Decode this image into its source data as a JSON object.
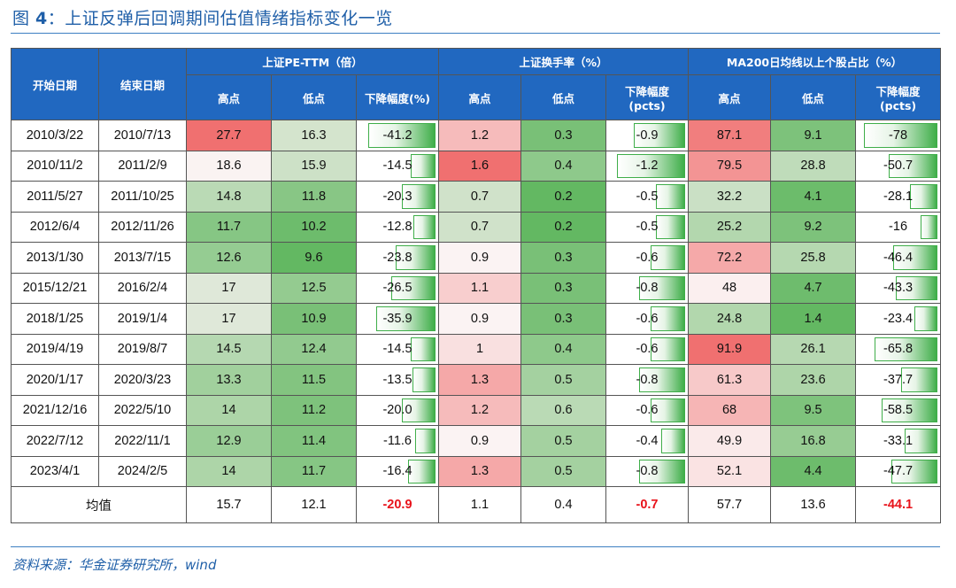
{
  "title": {
    "prefix": "图 ",
    "num": "4",
    "text": "：上证反弹后回调期间估值情绪指标变化一览"
  },
  "header": {
    "start_date": "开始日期",
    "end_date": "结束日期",
    "groups": [
      "上证PE-TTM（倍）",
      "上证换手率（%）",
      "MA200日均线以上个股占比（%）"
    ],
    "sub": [
      "高点",
      "低点",
      "下降幅度(%)",
      "高点",
      "低点",
      "下降幅度\n(pcts)",
      "高点",
      "低点",
      "下降幅度\n(pcts)"
    ]
  },
  "colors": {
    "header_bg": "#2168c0",
    "red_strong": "#f07070",
    "green_strong": "#5cb85c",
    "avg_red": "#e8131b",
    "accent": "#1f5fa8"
  },
  "rows": [
    {
      "start": "2010/3/22",
      "end": "2010/7/13",
      "pe_high": "27.7",
      "pe_low": "16.3",
      "pe_drop": "-41.2",
      "to_high": "1.2",
      "to_low": "0.3",
      "to_drop": "-0.9",
      "ma_high": "87.1",
      "ma_low": "9.1",
      "ma_drop": "-78"
    },
    {
      "start": "2010/11/2",
      "end": "2011/2/9",
      "pe_high": "18.6",
      "pe_low": "15.9",
      "pe_drop": "-14.5",
      "to_high": "1.6",
      "to_low": "0.4",
      "to_drop": "-1.2",
      "ma_high": "79.5",
      "ma_low": "28.8",
      "ma_drop": "-50.7"
    },
    {
      "start": "2011/5/27",
      "end": "2011/10/25",
      "pe_high": "14.8",
      "pe_low": "11.8",
      "pe_drop": "-20.3",
      "to_high": "0.7",
      "to_low": "0.2",
      "to_drop": "-0.5",
      "ma_high": "32.2",
      "ma_low": "4.1",
      "ma_drop": "-28.1"
    },
    {
      "start": "2012/6/4",
      "end": "2012/11/26",
      "pe_high": "11.7",
      "pe_low": "10.2",
      "pe_drop": "-12.8",
      "to_high": "0.7",
      "to_low": "0.2",
      "to_drop": "-0.5",
      "ma_high": "25.2",
      "ma_low": "9.2",
      "ma_drop": "-16"
    },
    {
      "start": "2013/1/30",
      "end": "2013/7/15",
      "pe_high": "12.6",
      "pe_low": "9.6",
      "pe_drop": "-23.8",
      "to_high": "0.9",
      "to_low": "0.3",
      "to_drop": "-0.6",
      "ma_high": "72.2",
      "ma_low": "25.8",
      "ma_drop": "-46.4"
    },
    {
      "start": "2015/12/21",
      "end": "2016/2/4",
      "pe_high": "17",
      "pe_low": "12.5",
      "pe_drop": "-26.5",
      "to_high": "1.1",
      "to_low": "0.3",
      "to_drop": "-0.8",
      "ma_high": "48",
      "ma_low": "4.7",
      "ma_drop": "-43.3"
    },
    {
      "start": "2018/1/25",
      "end": "2019/1/4",
      "pe_high": "17",
      "pe_low": "10.9",
      "pe_drop": "-35.9",
      "to_high": "0.9",
      "to_low": "0.3",
      "to_drop": "-0.6",
      "ma_high": "24.8",
      "ma_low": "1.4",
      "ma_drop": "-23.4"
    },
    {
      "start": "2019/4/19",
      "end": "2019/8/7",
      "pe_high": "14.5",
      "pe_low": "12.4",
      "pe_drop": "-14.5",
      "to_high": "1",
      "to_low": "0.4",
      "to_drop": "-0.6",
      "ma_high": "91.9",
      "ma_low": "26.1",
      "ma_drop": "-65.8"
    },
    {
      "start": "2020/1/17",
      "end": "2020/3/23",
      "pe_high": "13.3",
      "pe_low": "11.5",
      "pe_drop": "-13.5",
      "to_high": "1.3",
      "to_low": "0.5",
      "to_drop": "-0.8",
      "ma_high": "61.3",
      "ma_low": "23.6",
      "ma_drop": "-37.7"
    },
    {
      "start": "2021/12/16",
      "end": "2022/5/10",
      "pe_high": "14",
      "pe_low": "11.2",
      "pe_drop": "-20.0",
      "to_high": "1.2",
      "to_low": "0.6",
      "to_drop": "-0.6",
      "ma_high": "68",
      "ma_low": "9.5",
      "ma_drop": "-58.5"
    },
    {
      "start": "2022/7/12",
      "end": "2022/11/1",
      "pe_high": "12.9",
      "pe_low": "11.4",
      "pe_drop": "-11.6",
      "to_high": "0.9",
      "to_low": "0.5",
      "to_drop": "-0.4",
      "ma_high": "49.9",
      "ma_low": "16.8",
      "ma_drop": "-33.1"
    },
    {
      "start": "2023/4/1",
      "end": "2024/2/5",
      "pe_high": "14",
      "pe_low": "11.7",
      "pe_drop": "-16.4",
      "to_high": "1.3",
      "to_low": "0.5",
      "to_drop": "-0.8",
      "ma_high": "52.1",
      "ma_low": "4.4",
      "ma_drop": "-47.7"
    }
  ],
  "average": {
    "label": "均值",
    "pe_high": "15.7",
    "pe_low": "12.1",
    "pe_drop": "-20.9",
    "to_high": "1.1",
    "to_low": "0.4",
    "to_drop": "-0.7",
    "ma_high": "57.7",
    "ma_low": "13.6",
    "ma_drop": "-44.1"
  },
  "source": "资料来源：华金证券研究所，wind"
}
